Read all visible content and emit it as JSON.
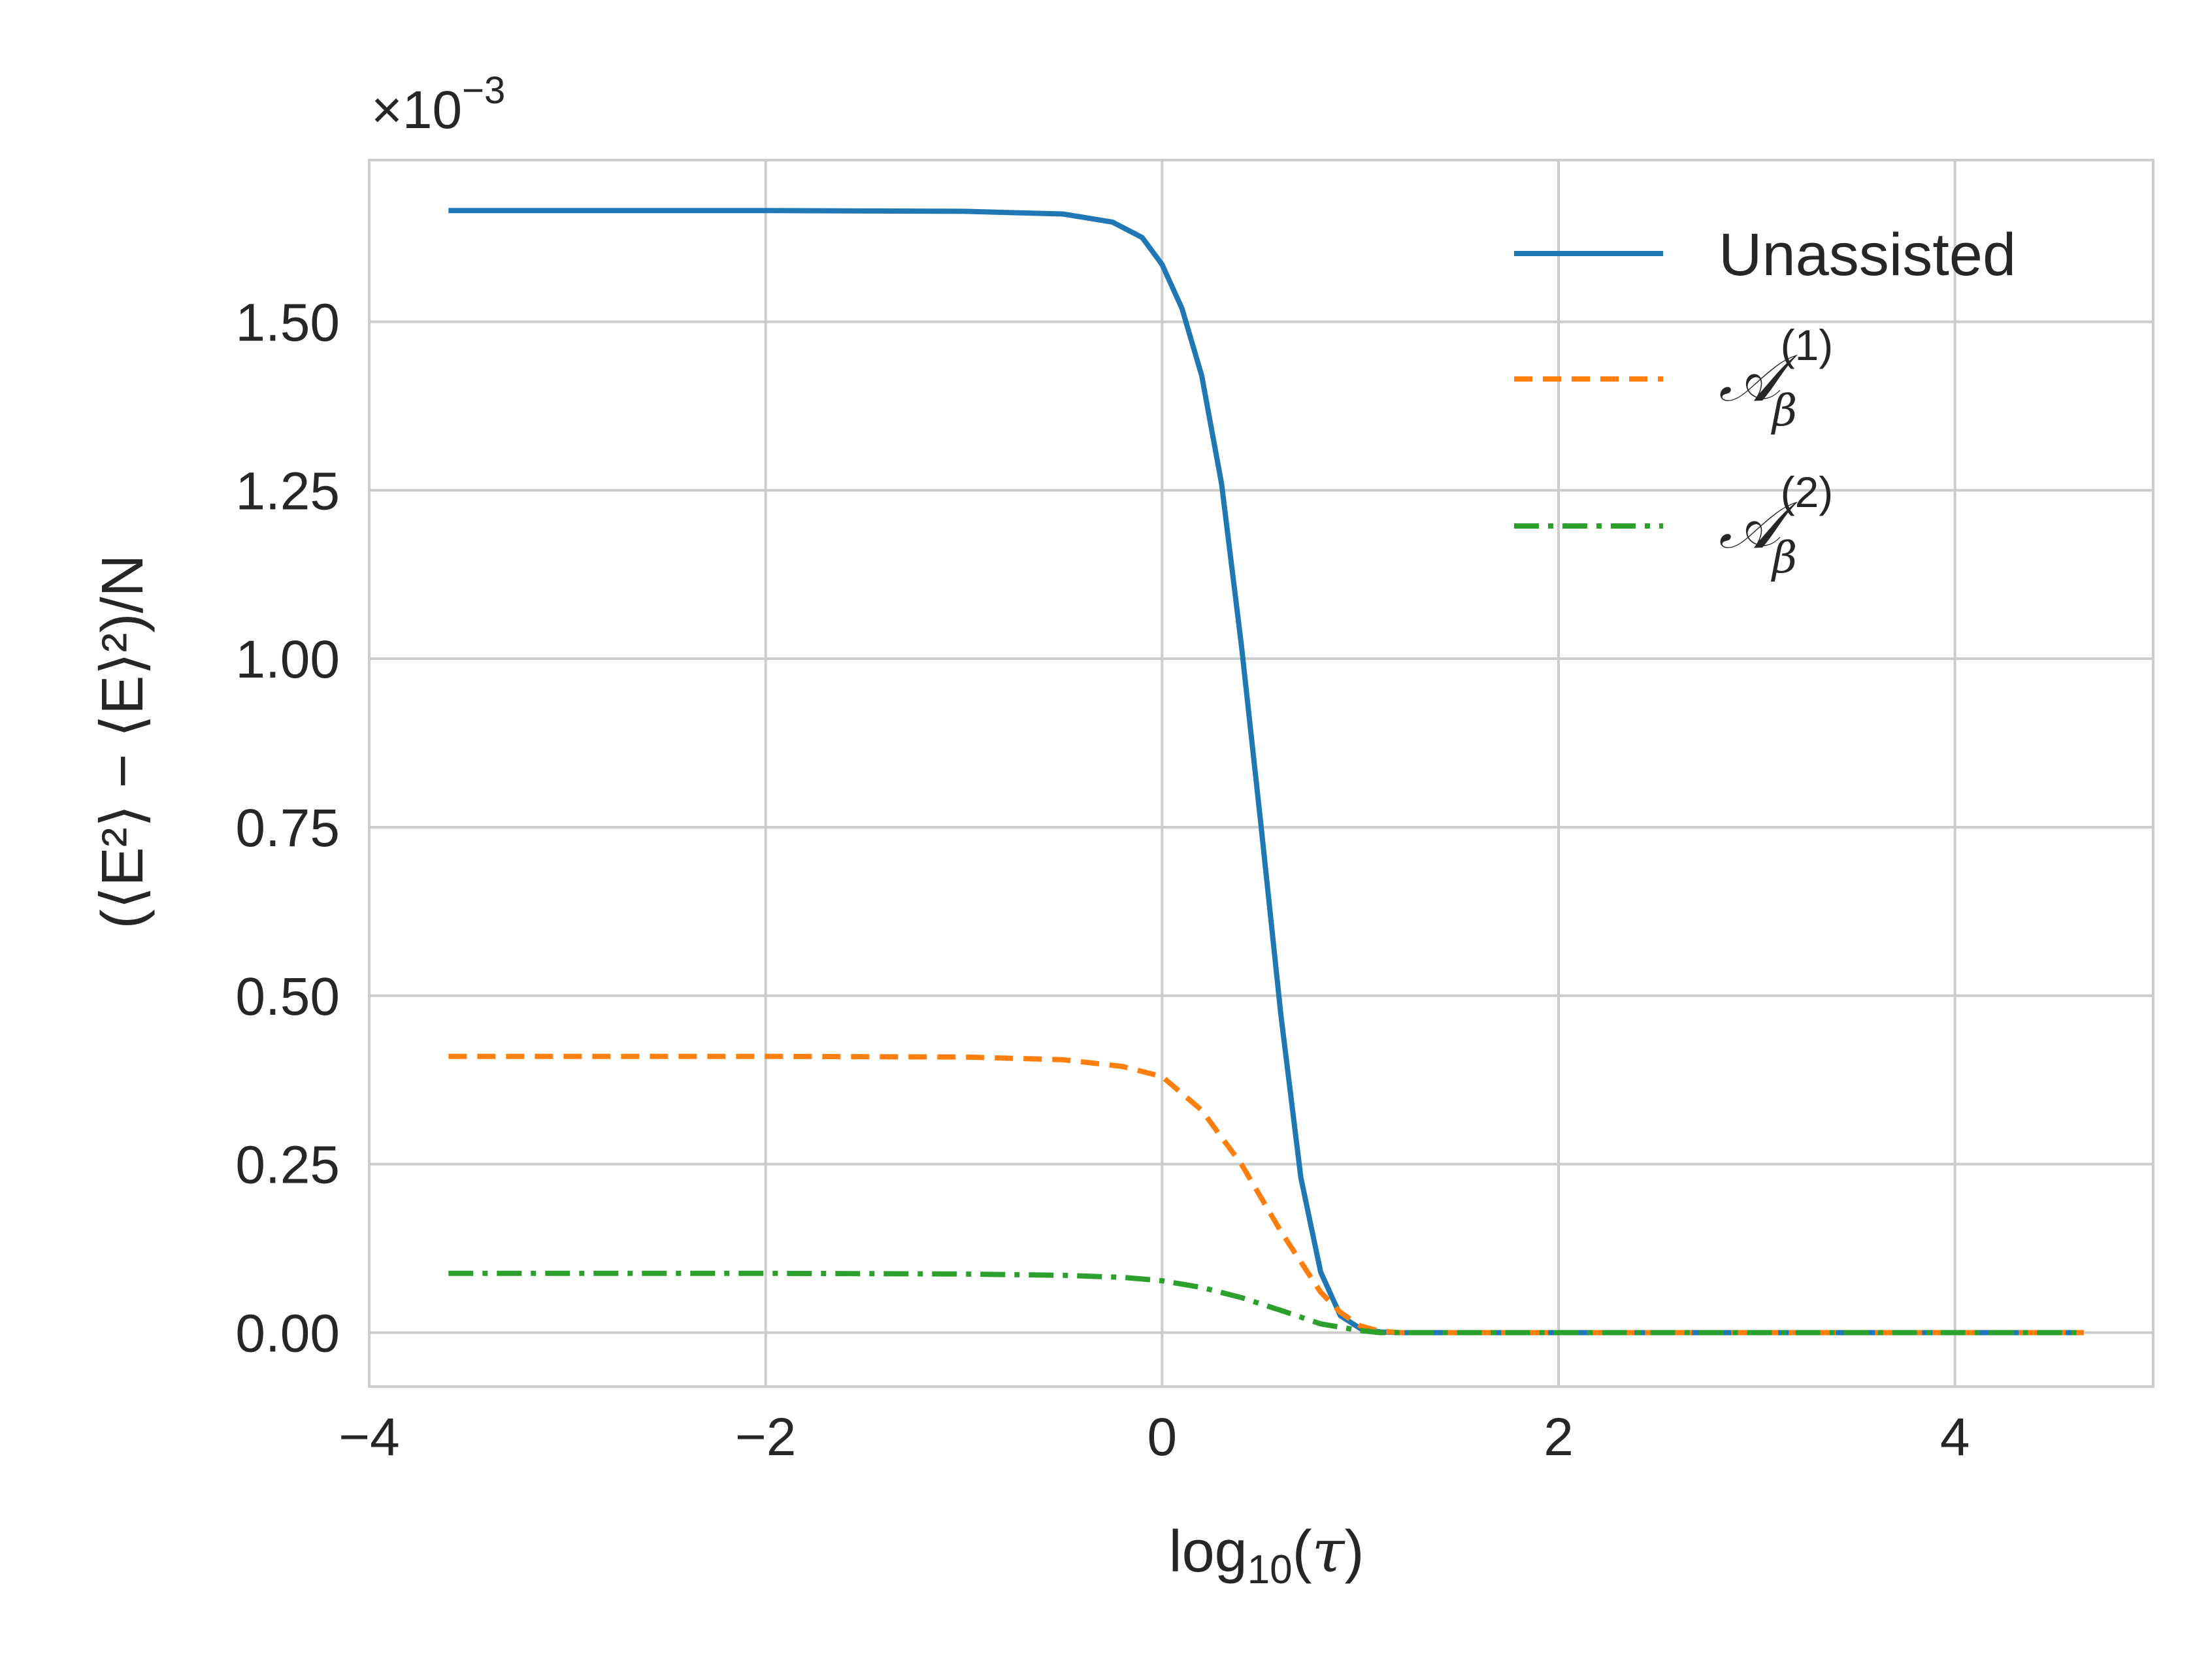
{
  "chart_data": {
    "type": "line",
    "title": "",
    "xlabel": {
      "base": "log",
      "sub": "10",
      "arg": "τ"
    },
    "ylabel": "(⟨E²⟩ − ⟨E⟩²)/N",
    "offset_text": {
      "base": "×10",
      "exp": "−3"
    },
    "xlim": [
      -4.0,
      5.0
    ],
    "ylim": [
      -0.08,
      1.74
    ],
    "y_scale_factor": 0.001,
    "xticks": [
      -4,
      -2,
      0,
      2,
      4
    ],
    "xtick_labels": [
      "−4",
      "−2",
      "0",
      "2",
      "4"
    ],
    "yticks": [
      0.0,
      0.25,
      0.5,
      0.75,
      1.0,
      1.25,
      1.5
    ],
    "ytick_labels": [
      "0.00",
      "0.25",
      "0.50",
      "0.75",
      "1.00",
      "1.25",
      "1.50"
    ],
    "grid": true,
    "legend_position": "top-right",
    "series": [
      {
        "name": "Unassisted",
        "color": "#1f77b4",
        "style": "solid",
        "x": [
          -3.6,
          -2.0,
          -1.0,
          -0.5,
          -0.25,
          -0.1,
          0.0,
          0.1,
          0.2,
          0.3,
          0.4,
          0.5,
          0.6,
          0.7,
          0.8,
          0.9,
          1.0,
          1.1,
          1.2,
          1.5,
          2.0,
          3.0,
          4.0,
          4.65
        ],
        "y": [
          1.665,
          1.665,
          1.664,
          1.66,
          1.648,
          1.625,
          1.585,
          1.52,
          1.42,
          1.26,
          1.02,
          0.75,
          0.47,
          0.23,
          0.09,
          0.025,
          0.006,
          0.001,
          0.0,
          0.0,
          0.0,
          0.0,
          0.0,
          0.0
        ]
      },
      {
        "name": "𝒜β(1)",
        "color": "#ff7f0e",
        "style": "dashed",
        "x": [
          -3.6,
          -2.0,
          -1.0,
          -0.5,
          -0.2,
          0.0,
          0.2,
          0.4,
          0.6,
          0.8,
          0.9,
          1.0,
          1.1,
          1.2,
          2.0,
          3.0,
          4.0,
          4.65
        ],
        "y": [
          0.41,
          0.41,
          0.409,
          0.405,
          0.395,
          0.38,
          0.33,
          0.25,
          0.15,
          0.06,
          0.03,
          0.01,
          0.002,
          0.0,
          0.0,
          0.0,
          0.0,
          0.0
        ]
      },
      {
        "name": "𝒜β(2)",
        "color": "#2ca02c",
        "style": "dashdot",
        "x": [
          -3.6,
          -2.0,
          -1.0,
          -0.5,
          -0.2,
          0.0,
          0.2,
          0.4,
          0.6,
          0.8,
          1.0,
          1.1,
          1.2,
          2.0,
          3.0,
          4.0,
          4.65
        ],
        "y": [
          0.088,
          0.088,
          0.087,
          0.085,
          0.082,
          0.077,
          0.067,
          0.052,
          0.033,
          0.013,
          0.003,
          0.0,
          0.0,
          0.0,
          0.0,
          0.0,
          0.0
        ]
      }
    ],
    "legend": [
      {
        "name": "Unassisted",
        "kind": "text"
      },
      {
        "name": "𝒜β(1)",
        "kind": "math",
        "base": "𝒜",
        "sub": "β",
        "sup": "(1)"
      },
      {
        "name": "𝒜β(2)",
        "kind": "math",
        "base": "𝒜",
        "sub": "β",
        "sup": "(2)"
      }
    ]
  }
}
